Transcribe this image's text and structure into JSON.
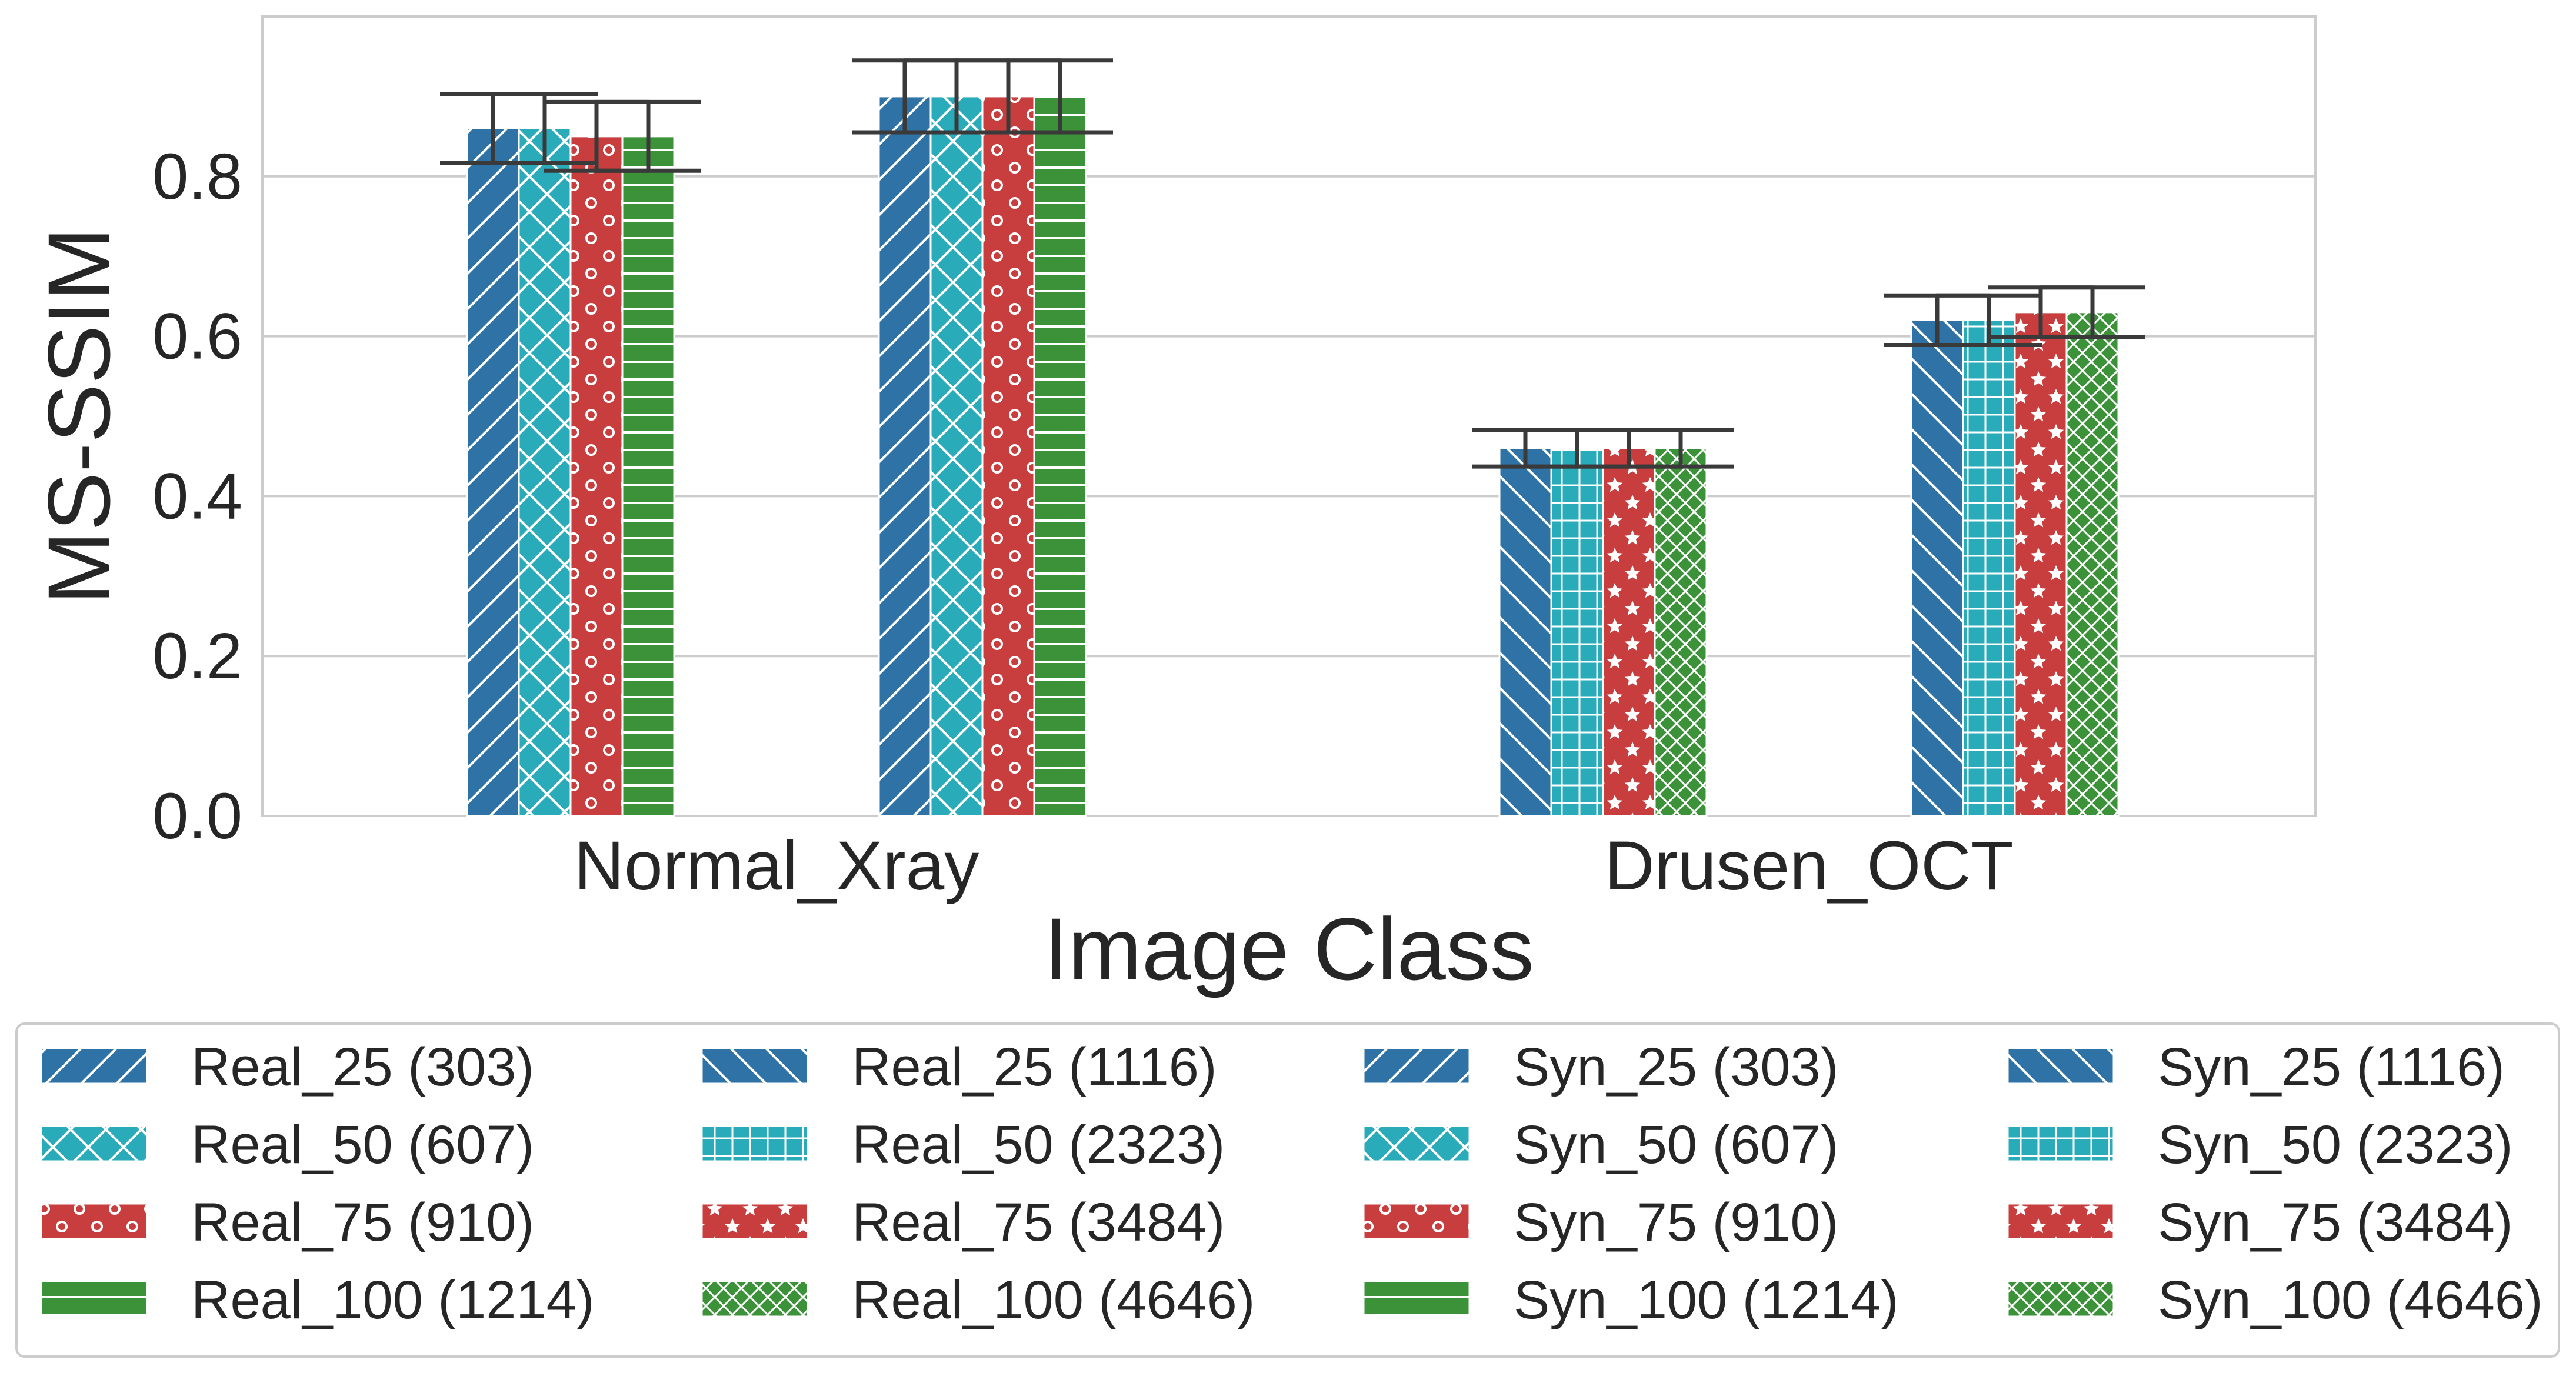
{
  "chart_data": {
    "type": "bar",
    "xlabel": "Image Class",
    "ylabel": "MS-SSIM",
    "ylim": [
      0,
      1
    ],
    "yticks": [
      "0.0",
      "0.2",
      "0.4",
      "0.6",
      "0.8"
    ],
    "grid": "horizontal",
    "legend_placement": "bottom",
    "categories": [
      "Normal_Xray",
      "Drusen_OCT"
    ],
    "groups": [
      {
        "category": "Normal_Xray",
        "subgroups": [
          {
            "bars": [
              {
                "label": "Real_25 (303)",
                "value": 0.86,
                "err": 0.043,
                "color": "#2f72a6",
                "pattern": "fwd-diag"
              },
              {
                "label": "Real_50 (607)",
                "value": 0.86,
                "err": 0.043,
                "color": "#2aabb9",
                "pattern": "cross-diag"
              },
              {
                "label": "Real_75 (910)",
                "value": 0.85,
                "err": 0.043,
                "color": "#c83e3e",
                "pattern": "circles"
              },
              {
                "label": "Real_100 (1214)",
                "value": 0.85,
                "err": 0.043,
                "color": "#3c9238",
                "pattern": "horizontal"
              }
            ]
          },
          {
            "bars": [
              {
                "label": "Syn_25 (303)",
                "value": 0.9,
                "err": 0.045,
                "color": "#2f72a6",
                "pattern": "fwd-diag"
              },
              {
                "label": "Syn_50 (607)",
                "value": 0.9,
                "err": 0.045,
                "color": "#2aabb9",
                "pattern": "cross-diag"
              },
              {
                "label": "Syn_75 (910)",
                "value": 0.9,
                "err": 0.045,
                "color": "#c83e3e",
                "pattern": "circles"
              },
              {
                "label": "Syn_100 (1214)",
                "value": 0.9,
                "err": 0.045,
                "color": "#3c9238",
                "pattern": "horizontal"
              }
            ]
          }
        ]
      },
      {
        "category": "Drusen_OCT",
        "subgroups": [
          {
            "bars": [
              {
                "label": "Real_25 (1116)",
                "value": 0.46,
                "err": 0.023,
                "color": "#2f72a6",
                "pattern": "back-diag"
              },
              {
                "label": "Real_50 (2323)",
                "value": 0.46,
                "err": 0.023,
                "color": "#2aabb9",
                "pattern": "grid"
              },
              {
                "label": "Real_75 (3484)",
                "value": 0.46,
                "err": 0.023,
                "color": "#c83e3e",
                "pattern": "stars"
              },
              {
                "label": "Real_100 (4646)",
                "value": 0.46,
                "err": 0.023,
                "color": "#3c9238",
                "pattern": "dense-cross"
              }
            ]
          },
          {
            "bars": [
              {
                "label": "Syn_25 (1116)",
                "value": 0.62,
                "err": 0.031,
                "color": "#2f72a6",
                "pattern": "back-diag"
              },
              {
                "label": "Syn_50 (2323)",
                "value": 0.62,
                "err": 0.031,
                "color": "#2aabb9",
                "pattern": "grid"
              },
              {
                "label": "Syn_75 (3484)",
                "value": 0.63,
                "err": 0.031,
                "color": "#c83e3e",
                "pattern": "stars"
              },
              {
                "label": "Syn_100 (4646)",
                "value": 0.63,
                "err": 0.031,
                "color": "#3c9238",
                "pattern": "dense-cross"
              }
            ]
          }
        ]
      }
    ],
    "legend": [
      [
        {
          "label": "Real_25 (303)",
          "color": "#2f72a6",
          "pattern": "fwd-diag"
        },
        {
          "label": "Real_50 (607)",
          "color": "#2aabb9",
          "pattern": "cross-diag"
        },
        {
          "label": "Real_75 (910)",
          "color": "#c83e3e",
          "pattern": "circles"
        },
        {
          "label": "Real_100 (1214)",
          "color": "#3c9238",
          "pattern": "horizontal"
        }
      ],
      [
        {
          "label": "Real_25 (1116)",
          "color": "#2f72a6",
          "pattern": "back-diag"
        },
        {
          "label": "Real_50 (2323)",
          "color": "#2aabb9",
          "pattern": "grid"
        },
        {
          "label": "Real_75 (3484)",
          "color": "#c83e3e",
          "pattern": "stars"
        },
        {
          "label": "Real_100 (4646)",
          "color": "#3c9238",
          "pattern": "dense-cross"
        }
      ],
      [
        {
          "label": "Syn_25 (303)",
          "color": "#2f72a6",
          "pattern": "fwd-diag"
        },
        {
          "label": "Syn_50 (607)",
          "color": "#2aabb9",
          "pattern": "cross-diag"
        },
        {
          "label": "Syn_75 (910)",
          "color": "#c83e3e",
          "pattern": "circles"
        },
        {
          "label": "Syn_100 (1214)",
          "color": "#3c9238",
          "pattern": "horizontal"
        }
      ],
      [
        {
          "label": "Syn_25 (1116)",
          "color": "#2f72a6",
          "pattern": "back-diag"
        },
        {
          "label": "Syn_50 (2323)",
          "color": "#2aabb9",
          "pattern": "grid"
        },
        {
          "label": "Syn_75 (3484)",
          "color": "#c83e3e",
          "pattern": "stars"
        },
        {
          "label": "Syn_100 (4646)",
          "color": "#3c9238",
          "pattern": "dense-cross"
        }
      ]
    ]
  }
}
